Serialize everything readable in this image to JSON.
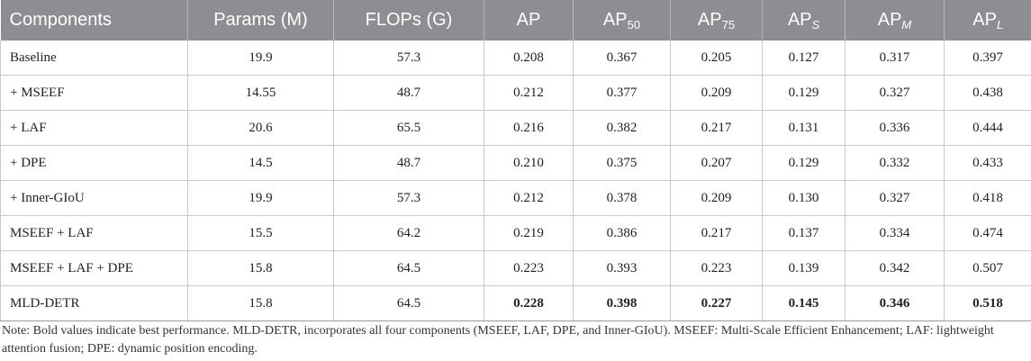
{
  "table": {
    "headers": [
      {
        "base": "Components",
        "sub": ""
      },
      {
        "base": "Params (M)",
        "sub": ""
      },
      {
        "base": "FLOPs (G)",
        "sub": ""
      },
      {
        "base": "AP",
        "sub": ""
      },
      {
        "base": "AP",
        "sub": "50"
      },
      {
        "base": "AP",
        "sub": "75"
      },
      {
        "base": "AP",
        "sub": "S"
      },
      {
        "base": "AP",
        "sub": "M"
      },
      {
        "base": "AP",
        "sub": "L"
      }
    ],
    "rows": [
      [
        "Baseline",
        "19.9",
        "57.3",
        "0.208",
        "0.367",
        "0.205",
        "0.127",
        "0.317",
        "0.397"
      ],
      [
        "+ MSEEF",
        "14.55",
        "48.7",
        "0.212",
        "0.377",
        "0.209",
        "0.129",
        "0.327",
        "0.438"
      ],
      [
        "+ LAF",
        "20.6",
        "65.5",
        "0.216",
        "0.382",
        "0.217",
        "0.131",
        "0.336",
        "0.444"
      ],
      [
        "+ DPE",
        "14.5",
        "48.7",
        "0.210",
        "0.375",
        "0.207",
        "0.129",
        "0.332",
        "0.433"
      ],
      [
        "+ Inner-GIoU",
        "19.9",
        "57.3",
        "0.212",
        "0.378",
        "0.209",
        "0.130",
        "0.327",
        "0.418"
      ],
      [
        "MSEEF + LAF",
        "15.5",
        "64.2",
        "0.219",
        "0.386",
        "0.217",
        "0.137",
        "0.334",
        "0.474"
      ],
      [
        "MSEEF + LAF + DPE",
        "15.8",
        "64.5",
        "0.223",
        "0.393",
        "0.223",
        "0.139",
        "0.342",
        "0.507"
      ],
      [
        "MLD-DETR",
        "15.8",
        "64.5",
        "0.228",
        "0.398",
        "0.227",
        "0.145",
        "0.346",
        "0.518"
      ]
    ]
  },
  "note": "Note: Bold values indicate best performance. MLD-DETR, incorporates all four components (MSEEF, LAF, DPE, and Inner-GIoU). MSEEF: Multi-Scale Efficient Enhancement; LAF: lightweight attention fusion; DPE: dynamic position encoding."
}
